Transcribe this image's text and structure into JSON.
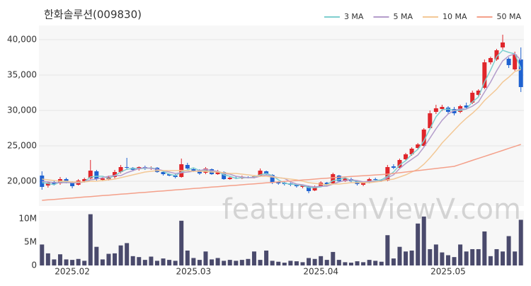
{
  "chart_data": [
    {
      "type": "candlestick",
      "title": "한화솔루션(009830)",
      "watermark": "feature.enViewV.com",
      "categories": [
        null,
        null,
        null,
        null,
        null,
        "2025.02",
        null,
        null,
        null,
        null,
        null,
        null,
        null,
        null,
        null,
        null,
        null,
        null,
        null,
        null,
        null,
        null,
        null,
        null,
        null,
        "2025.03",
        null,
        null,
        null,
        null,
        null,
        null,
        null,
        null,
        null,
        null,
        null,
        null,
        null,
        null,
        null,
        null,
        null,
        null,
        null,
        null,
        "2025.04",
        null,
        null,
        null,
        null,
        null,
        null,
        null,
        null,
        null,
        null,
        null,
        null,
        null,
        null,
        null,
        null,
        null,
        null,
        null,
        null,
        "2025.05",
        null,
        null,
        null,
        null,
        null,
        null,
        null,
        null,
        null,
        null,
        null,
        null
      ],
      "open": [
        20800,
        19400,
        19900,
        19700,
        20300,
        19900,
        19500,
        20000,
        20400,
        21400,
        20200,
        20300,
        20600,
        21300,
        22000,
        21900,
        21700,
        22000,
        21800,
        21900,
        21300,
        21000,
        20800,
        20600,
        22300,
        21700,
        21500,
        21200,
        21700,
        21000,
        21300,
        20300,
        20500,
        20400,
        20600,
        20500,
        20700,
        21400,
        20900,
        19900,
        19800,
        19700,
        19500,
        19200,
        19300,
        18700,
        19300,
        19800,
        19700,
        20800,
        20000,
        20300,
        20000,
        19500,
        19800,
        20300,
        20200,
        20100,
        22100,
        21900,
        23100,
        23800,
        24700,
        25000,
        27500,
        29800,
        30200,
        30400,
        30200,
        29800,
        30700,
        31100,
        32200,
        33200,
        36800,
        37200,
        38900,
        37300,
        35800,
        37200
      ],
      "high": [
        21400,
        20000,
        20100,
        20600,
        20500,
        20000,
        20300,
        20500,
        23000,
        21600,
        20600,
        20800,
        21600,
        22300,
        23300,
        22000,
        22100,
        22200,
        22100,
        22000,
        21400,
        21100,
        21000,
        23200,
        22600,
        21900,
        21700,
        22000,
        21800,
        21600,
        21400,
        20700,
        20700,
        20800,
        20700,
        20800,
        21800,
        21500,
        21000,
        20000,
        19900,
        19800,
        19600,
        19500,
        19400,
        19400,
        20000,
        19900,
        21200,
        20900,
        20600,
        20500,
        20100,
        19900,
        20500,
        20500,
        20300,
        22300,
        22400,
        23200,
        24000,
        24800,
        25400,
        27500,
        30000,
        30800,
        30800,
        30600,
        30500,
        30800,
        31100,
        32800,
        33000,
        37200,
        37600,
        38700,
        40700,
        37500,
        38300,
        38900
      ],
      "low": [
        18800,
        19100,
        19400,
        19500,
        19700,
        19000,
        19400,
        19800,
        20300,
        20100,
        20000,
        20100,
        20400,
        21100,
        21600,
        21400,
        21500,
        21600,
        21600,
        21200,
        20800,
        20700,
        20400,
        20500,
        21700,
        21300,
        20900,
        21000,
        20900,
        20900,
        20200,
        20200,
        20300,
        20300,
        20400,
        20400,
        20600,
        20800,
        19600,
        19500,
        19400,
        19300,
        19100,
        19000,
        18300,
        18600,
        19200,
        19300,
        19600,
        19900,
        19900,
        19800,
        19400,
        19300,
        19700,
        20000,
        19900,
        20000,
        21700,
        21800,
        23000,
        23600,
        24500,
        24900,
        27300,
        29500,
        29900,
        29500,
        29300,
        29600,
        30200,
        30900,
        32000,
        33000,
        36500,
        37000,
        38600,
        36000,
        35600,
        32600
      ],
      "close": [
        19200,
        19800,
        19600,
        20300,
        19900,
        19300,
        20100,
        20300,
        21500,
        20300,
        20400,
        20600,
        21300,
        22000,
        21900,
        21600,
        22000,
        21800,
        21900,
        21300,
        21000,
        20800,
        20600,
        22400,
        21800,
        21500,
        21100,
        21800,
        21000,
        21400,
        20300,
        20500,
        20400,
        20600,
        20500,
        20700,
        21500,
        21000,
        19800,
        19700,
        19600,
        19500,
        19300,
        19400,
        18600,
        19200,
        19800,
        19500,
        21000,
        20000,
        20400,
        20000,
        19600,
        19800,
        20300,
        20200,
        20000,
        22000,
        21900,
        23000,
        23800,
        24600,
        25200,
        27300,
        29600,
        30300,
        30500,
        29800,
        29600,
        30600,
        30400,
        32500,
        32800,
        36800,
        37400,
        38500,
        39600,
        36400,
        37900,
        33300
      ],
      "up_color": "#e0262b",
      "down_color": "#1f62d1",
      "series": [
        {
          "name": "3 MA",
          "color": "#7fcfcf",
          "values": [
            19800,
            19700,
            19500,
            19900,
            19900,
            19800,
            19800,
            19900,
            20600,
            20700,
            20700,
            20400,
            20800,
            21300,
            21700,
            21800,
            21800,
            21800,
            21900,
            21700,
            21400,
            21000,
            20800,
            21300,
            21600,
            21900,
            21500,
            21500,
            21300,
            21400,
            20900,
            20700,
            20400,
            20500,
            20500,
            20600,
            20900,
            21100,
            20800,
            20200,
            19700,
            19600,
            19500,
            19400,
            19100,
            19100,
            19200,
            19500,
            20100,
            20200,
            20500,
            20100,
            20000,
            19800,
            19900,
            20100,
            20200,
            20700,
            21300,
            22300,
            22900,
            23800,
            24500,
            25700,
            27400,
            29100,
            30100,
            30200,
            30000,
            30000,
            30200,
            31200,
            31900,
            34000,
            35700,
            37600,
            38500,
            38200,
            38000,
            35900
          ]
        },
        {
          "name": "5 MA",
          "color": "#b49ccb",
          "values": [
            20000,
            19900,
            19800,
            19800,
            19800,
            19800,
            19800,
            19900,
            20200,
            20300,
            20500,
            20700,
            20800,
            20800,
            21200,
            21500,
            21800,
            21900,
            21800,
            21700,
            21500,
            21300,
            21100,
            21200,
            21300,
            21400,
            21500,
            21700,
            21500,
            21400,
            21100,
            21000,
            20700,
            20600,
            20500,
            20500,
            20700,
            20900,
            20700,
            20500,
            20400,
            19900,
            19600,
            19500,
            19300,
            19200,
            19300,
            19300,
            19600,
            19900,
            20100,
            20200,
            20100,
            19900,
            20000,
            20000,
            20000,
            20500,
            20900,
            21800,
            22500,
            23100,
            23700,
            24800,
            26100,
            27400,
            28600,
            29500,
            30000,
            30200,
            30200,
            30600,
            31200,
            32600,
            34000,
            35600,
            37000,
            37700,
            38000,
            37100
          ]
        },
        {
          "name": "10 MA",
          "color": "#f3c896",
          "values": [
            20300,
            20200,
            20100,
            20000,
            20000,
            19900,
            19900,
            19900,
            20000,
            20000,
            20100,
            20200,
            20300,
            20500,
            20700,
            20900,
            21100,
            21300,
            21400,
            21500,
            21500,
            21500,
            21500,
            21500,
            21500,
            21400,
            21400,
            21400,
            21300,
            21300,
            21200,
            21100,
            21100,
            21000,
            20900,
            20800,
            20700,
            20700,
            20600,
            20500,
            20400,
            20300,
            20200,
            20000,
            19800,
            19700,
            19600,
            19500,
            19600,
            19600,
            19700,
            19800,
            19800,
            19800,
            19800,
            19900,
            20000,
            20200,
            20300,
            20600,
            20900,
            21300,
            21700,
            22400,
            23300,
            24300,
            25400,
            26300,
            27200,
            28100,
            28900,
            29600,
            30400,
            31400,
            32200,
            33000,
            34000,
            34700,
            35500,
            35800
          ]
        },
        {
          "name": "50 MA",
          "color": "#f4a08a",
          "values": [
            17300,
            17370,
            17430,
            17500,
            17570,
            17630,
            17700,
            17770,
            17830,
            17900,
            17970,
            18030,
            18100,
            18170,
            18230,
            18300,
            18370,
            18430,
            18500,
            18570,
            18630,
            18700,
            18770,
            18830,
            18900,
            18970,
            19030,
            19100,
            19170,
            19230,
            19300,
            19370,
            19430,
            19500,
            19570,
            19630,
            19700,
            19770,
            19830,
            19900,
            19970,
            20030,
            20100,
            20170,
            20230,
            20300,
            20370,
            20430,
            20500,
            20560,
            20610,
            20670,
            20720,
            20780,
            20830,
            20890,
            20940,
            21000,
            21100,
            21200,
            21300,
            21400,
            21500,
            21600,
            21700,
            21800,
            21900,
            22000,
            22100,
            22380,
            22660,
            22950,
            23230,
            23510,
            23790,
            24070,
            24350,
            24640,
            24920,
            25200
          ]
        }
      ],
      "ylim": [
        16500,
        42000
      ],
      "yticks": [
        {
          "value": 20000,
          "label": "20,000"
        },
        {
          "value": 25000,
          "label": "25,000"
        },
        {
          "value": 30000,
          "label": "30,000"
        },
        {
          "value": 35000,
          "label": "35,000"
        },
        {
          "value": 40000,
          "label": "40,000"
        }
      ],
      "grid": true,
      "legend": "top-right"
    },
    {
      "type": "bar",
      "color": "#4a4a6c",
      "values": [
        4500000,
        2600000,
        1300000,
        2400000,
        1300000,
        1200000,
        1400000,
        1000000,
        11000000,
        4000000,
        1300000,
        2500000,
        2600000,
        4300000,
        4800000,
        2000000,
        1800000,
        1200000,
        1900000,
        1000000,
        1500000,
        1200000,
        1000000,
        9600000,
        3200000,
        1600000,
        1200000,
        3000000,
        1300000,
        1600000,
        1000000,
        1200000,
        1000000,
        1200000,
        1400000,
        3000000,
        1200000,
        3200000,
        1000000,
        800000,
        600000,
        1000000,
        900000,
        700000,
        1600000,
        1400000,
        2000000,
        1200000,
        2900000,
        1200000,
        700000,
        600000,
        900000,
        700000,
        1200000,
        1000000,
        800000,
        6500000,
        1500000,
        4000000,
        3000000,
        3200000,
        9000000,
        10500000,
        3500000,
        4500000,
        2800000,
        2200000,
        1800000,
        4500000,
        3000000,
        3500000,
        3500000,
        7300000,
        2000000,
        3500000,
        3000000,
        6300000,
        3000000,
        9800000
      ],
      "ylim": [
        0,
        11700000
      ],
      "yticks": [
        0,
        {
          "value": 5000000,
          "label": "5M"
        },
        {
          "value": 10000000,
          "label": "10M"
        }
      ]
    }
  ]
}
